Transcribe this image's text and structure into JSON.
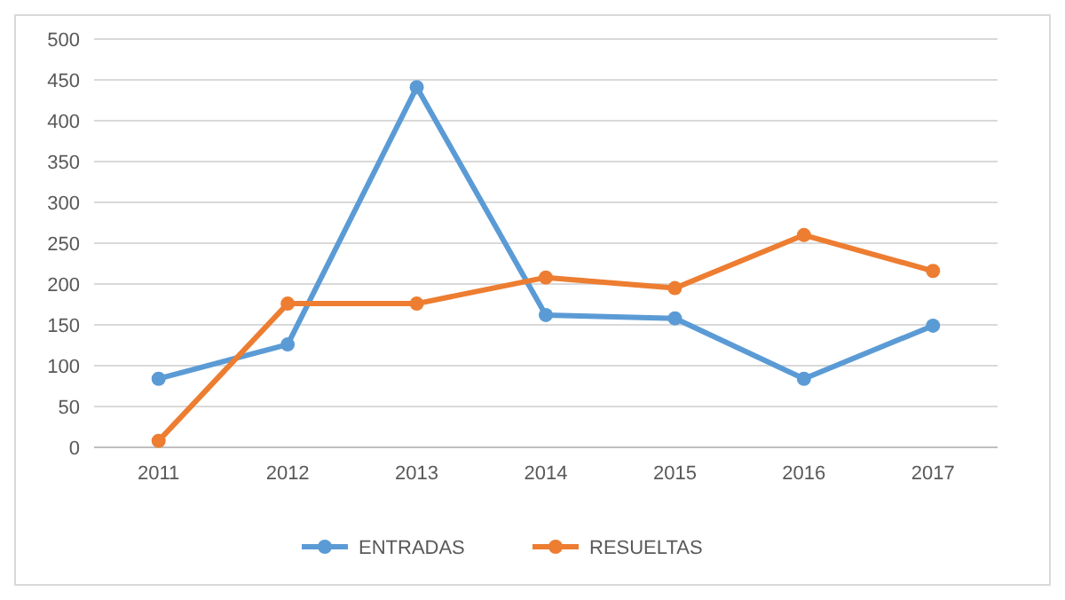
{
  "chart_data": {
    "type": "line",
    "categories": [
      "2011",
      "2012",
      "2013",
      "2014",
      "2015",
      "2016",
      "2017"
    ],
    "series": [
      {
        "name": "ENTRADAS",
        "color": "#5b9bd5",
        "values": [
          84,
          126,
          441,
          162,
          158,
          84,
          149
        ]
      },
      {
        "name": "RESUELTAS",
        "color": "#ed7d31",
        "values": [
          8,
          176,
          176,
          208,
          195,
          260,
          216
        ]
      }
    ],
    "ylim": [
      0,
      500
    ],
    "yticks": [
      0,
      50,
      100,
      150,
      200,
      250,
      300,
      350,
      400,
      450,
      500
    ],
    "grid": "y",
    "legend": "bottom",
    "marker": "circle",
    "line_style": "solid"
  }
}
